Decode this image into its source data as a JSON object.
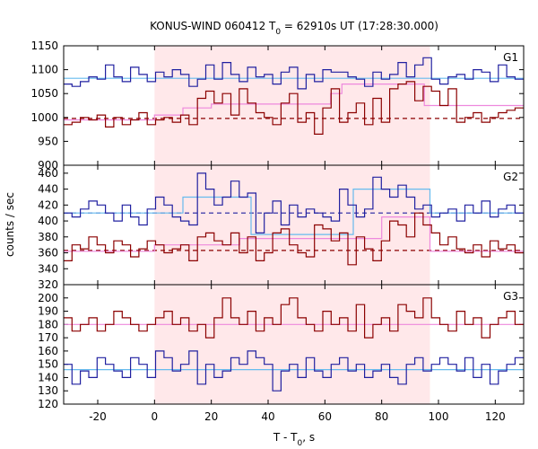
{
  "chart_data": {
    "type": "line",
    "title": "KONUS-WIND 060412 T",
    "title_sub": "0",
    "title_rest": " = 62910s UT (17:28:30.000)",
    "xlabel": "T - T",
    "xlabel_sub": "0",
    "xlabel_rest": ", s",
    "ylabel": "counts / sec",
    "xlim": [
      -32,
      130
    ],
    "xticks": [
      -20,
      0,
      20,
      40,
      60,
      80,
      100,
      120
    ],
    "shaded_interval": [
      0,
      97
    ],
    "bin_width": 2.944,
    "colors": {
      "blue_series": "#2020a0",
      "red_series": "#8b0000",
      "cyan_fit": "#66bbee",
      "pink_fit": "#ee88dd",
      "shade": "#ffe8ea"
    },
    "panels": [
      {
        "label": "G1",
        "ylim": [
          900,
          1150
        ],
        "yticks": [
          900,
          950,
          1000,
          1050,
          1100,
          1150
        ],
        "series": [
          {
            "color": "blue",
            "values": [
              1070,
              1065,
              1075,
              1085,
              1080,
              1110,
              1085,
              1075,
              1105,
              1090,
              1075,
              1095,
              1085,
              1100,
              1090,
              1065,
              1080,
              1110,
              1080,
              1115,
              1090,
              1075,
              1105,
              1085,
              1090,
              1070,
              1095,
              1105,
              1060,
              1090,
              1075,
              1100,
              1095,
              1095,
              1085,
              1080,
              1065,
              1095,
              1080,
              1090,
              1115,
              1085,
              1110,
              1125,
              1080,
              1070,
              1085,
              1090,
              1080,
              1100,
              1095,
              1075,
              1110,
              1085,
              1080
            ]
          },
          {
            "color": "red",
            "values": [
              985,
              990,
              1000,
              995,
              1005,
              980,
              1000,
              985,
              995,
              1010,
              985,
              995,
              1000,
              990,
              1005,
              985,
              1040,
              1055,
              1030,
              1050,
              1005,
              1060,
              1030,
              1010,
              1000,
              985,
              1030,
              1050,
              990,
              1010,
              965,
              1020,
              1060,
              990,
              1010,
              1030,
              985,
              1040,
              990,
              1060,
              1070,
              1075,
              1035,
              1065,
              1055,
              1025,
              1060,
              990,
              1000,
              1010,
              990,
              1000,
              1010,
              1015,
              1020
            ]
          }
        ],
        "fits": [
          {
            "color": "cyan",
            "points": [
              [
                -32,
                1082
              ],
              [
                130,
                1082
              ]
            ]
          },
          {
            "color": "pink",
            "points": [
              [
                -32,
                995
              ],
              [
                0,
                995
              ],
              [
                0,
                1005
              ],
              [
                10,
                1005
              ],
              [
                10,
                1020
              ],
              [
                20,
                1020
              ],
              [
                20,
                1028
              ],
              [
                62,
                1028
              ],
              [
                62,
                1050
              ],
              [
                66,
                1050
              ],
              [
                66,
                1070
              ],
              [
                95,
                1070
              ],
              [
                95,
                1025
              ],
              [
                130,
                1025
              ]
            ]
          }
        ],
        "baselines": [
          {
            "color": "red",
            "value": 998
          }
        ]
      },
      {
        "label": "G2",
        "ylim": [
          320,
          470
        ],
        "yticks": [
          320,
          340,
          360,
          380,
          400,
          420,
          440,
          460
        ],
        "series": [
          {
            "color": "blue",
            "values": [
              410,
              405,
              415,
              425,
              420,
              410,
              400,
              420,
              405,
              395,
              415,
              430,
              420,
              405,
              400,
              395,
              460,
              440,
              420,
              430,
              450,
              430,
              435,
              385,
              410,
              425,
              395,
              420,
              405,
              415,
              410,
              405,
              400,
              440,
              420,
              405,
              415,
              455,
              440,
              430,
              445,
              430,
              415,
              420,
              405,
              410,
              415,
              400,
              420,
              410,
              425,
              405,
              415,
              420,
              410
            ]
          },
          {
            "color": "red",
            "values": [
              350,
              370,
              365,
              380,
              370,
              360,
              375,
              370,
              355,
              365,
              375,
              370,
              360,
              365,
              370,
              350,
              380,
              385,
              375,
              370,
              385,
              360,
              380,
              350,
              360,
              385,
              390,
              370,
              360,
              355,
              395,
              390,
              375,
              385,
              345,
              380,
              365,
              350,
              375,
              400,
              395,
              380,
              410,
              395,
              385,
              370,
              380,
              365,
              360,
              370,
              355,
              375,
              365,
              370,
              360
            ]
          }
        ],
        "fits": [
          {
            "color": "cyan",
            "points": [
              [
                -32,
                410
              ],
              [
                10,
                410
              ],
              [
                10,
                430
              ],
              [
                34,
                430
              ],
              [
                34,
                383
              ],
              [
                70,
                383
              ],
              [
                70,
                440
              ],
              [
                97,
                440
              ],
              [
                97,
                410
              ],
              [
                130,
                410
              ]
            ]
          },
          {
            "color": "pink",
            "points": [
              [
                -32,
                362
              ],
              [
                0,
                362
              ],
              [
                0,
                370
              ],
              [
                30,
                370
              ],
              [
                30,
                378
              ],
              [
                80,
                378
              ],
              [
                80,
                405
              ],
              [
                97,
                405
              ],
              [
                97,
                362
              ],
              [
                130,
                362
              ]
            ]
          }
        ],
        "baselines": [
          {
            "color": "blue",
            "value": 410
          },
          {
            "color": "red",
            "value": 363
          }
        ]
      },
      {
        "label": "G3",
        "ylim": [
          120,
          210
        ],
        "yticks": [
          120,
          130,
          140,
          150,
          160,
          170,
          180,
          190,
          200
        ],
        "series": [
          {
            "color": "blue",
            "values": [
              150,
              135,
              145,
              140,
              155,
              150,
              145,
              140,
              155,
              150,
              140,
              160,
              155,
              145,
              150,
              160,
              135,
              150,
              140,
              145,
              155,
              150,
              160,
              155,
              150,
              130,
              145,
              150,
              140,
              155,
              145,
              140,
              150,
              155,
              145,
              150,
              140,
              145,
              150,
              140,
              135,
              150,
              155,
              145,
              150,
              155,
              150,
              145,
              155,
              140,
              150,
              135,
              145,
              150,
              155
            ]
          },
          {
            "color": "red",
            "values": [
              185,
              175,
              180,
              185,
              175,
              180,
              190,
              185,
              180,
              175,
              180,
              185,
              190,
              180,
              185,
              175,
              180,
              170,
              185,
              200,
              185,
              180,
              190,
              175,
              185,
              180,
              195,
              200,
              185,
              180,
              175,
              190,
              180,
              185,
              175,
              195,
              170,
              180,
              185,
              175,
              195,
              190,
              185,
              200,
              185,
              180,
              175,
              190,
              180,
              185,
              170,
              180,
              185,
              190,
              180
            ]
          }
        ],
        "fits": [
          {
            "color": "cyan",
            "points": [
              [
                -32,
                146
              ],
              [
                130,
                146
              ]
            ]
          },
          {
            "color": "pink",
            "points": [
              [
                -32,
                180
              ],
              [
                130,
                180
              ]
            ]
          }
        ],
        "baselines": []
      }
    ]
  }
}
